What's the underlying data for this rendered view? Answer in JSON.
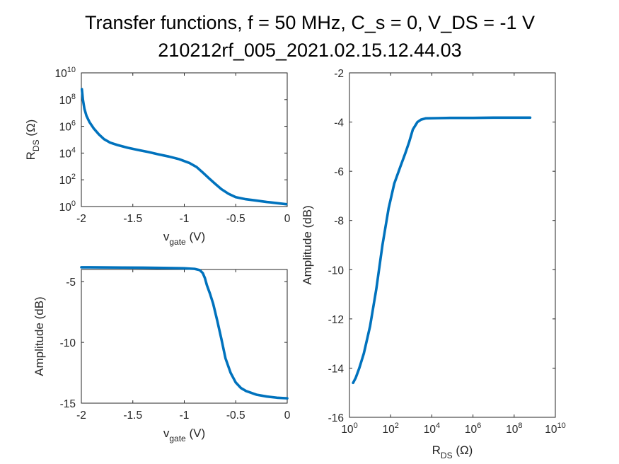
{
  "figure": {
    "title_line1": "Transfer functions, f = 50 MHz, C_s = 0, V_DS = -1 V",
    "title_line2": "210212rf_005_2021.02.15.12.44.03",
    "line_color": "#0072BD"
  },
  "chart_data": [
    {
      "type": "line",
      "name": "rds-vs-vgate",
      "xlabel": {
        "main": "v",
        "sub": "gate",
        "unit": " (V)"
      },
      "ylabel": {
        "main": "R",
        "sub": "DS",
        "unit": " (Ω)"
      },
      "xlim": [
        -2,
        0
      ],
      "ylim": [
        1,
        10000000000
      ],
      "yscale": "log",
      "xticks": [
        -2,
        -1.5,
        -1,
        -0.5,
        0
      ],
      "xticklabels": [
        "-2",
        "-1.5",
        "-1",
        "-0.5",
        "0"
      ],
      "yticks": [
        1,
        100,
        10000,
        1000000,
        100000000,
        10000000000
      ],
      "yticklabels": [
        {
          "b": "10",
          "e": "0"
        },
        {
          "b": "10",
          "e": "2"
        },
        {
          "b": "10",
          "e": "4"
        },
        {
          "b": "10",
          "e": "6"
        },
        {
          "b": "10",
          "e": "8"
        },
        {
          "b": "10",
          "e": "10"
        }
      ],
      "x": [
        -1.995,
        -1.985,
        -1.97,
        -1.95,
        -1.92,
        -1.88,
        -1.83,
        -1.78,
        -1.72,
        -1.65,
        -1.55,
        -1.45,
        -1.35,
        -1.25,
        -1.15,
        -1.05,
        -0.95,
        -0.88,
        -0.82,
        -0.76,
        -0.7,
        -0.64,
        -0.57,
        -0.5,
        -0.4,
        -0.3,
        -0.2,
        -0.1,
        -0.01
      ],
      "y": [
        600000000,
        100000000,
        20000000,
        6000000,
        2000000,
        700000,
        250000,
        110000,
        60000,
        40000,
        25000,
        17000,
        12000,
        8000,
        5500,
        3500,
        1800,
        900,
        350,
        130,
        50,
        20,
        9,
        5,
        3.5,
        2.8,
        2.2,
        1.8,
        1.5
      ]
    },
    {
      "type": "line",
      "name": "amplitude-vs-vgate",
      "xlabel": {
        "main": "v",
        "sub": "gate",
        "unit": " (V)"
      },
      "ylabel": {
        "main": "Amplitude (dB)",
        "sub": "",
        "unit": ""
      },
      "xlim": [
        -2,
        0
      ],
      "ylim": [
        -15,
        -4
      ],
      "yscale": "linear",
      "xticks": [
        -2,
        -1.5,
        -1,
        -0.5,
        0
      ],
      "xticklabels": [
        "-2",
        "-1.5",
        "-1",
        "-0.5",
        "0"
      ],
      "yticks": [
        -15,
        -10,
        -5
      ],
      "yticklabels": [
        "-15",
        "-10",
        "-5"
      ],
      "x": [
        -2.0,
        -1.8,
        -1.6,
        -1.4,
        -1.2,
        -1.0,
        -0.9,
        -0.85,
        -0.82,
        -0.8,
        -0.78,
        -0.75,
        -0.72,
        -0.68,
        -0.64,
        -0.6,
        -0.55,
        -0.5,
        -0.45,
        -0.4,
        -0.3,
        -0.2,
        -0.1,
        0.0
      ],
      "y": [
        -3.82,
        -3.83,
        -3.84,
        -3.85,
        -3.87,
        -3.9,
        -3.95,
        -4.05,
        -4.3,
        -4.7,
        -5.3,
        -6.0,
        -6.8,
        -8.2,
        -9.7,
        -11.3,
        -12.5,
        -13.3,
        -13.75,
        -14.0,
        -14.3,
        -14.45,
        -14.55,
        -14.6
      ]
    },
    {
      "type": "line",
      "name": "amplitude-vs-rds",
      "xlabel": {
        "main": "R",
        "sub": "DS",
        "unit": " (Ω)"
      },
      "ylabel": {
        "main": "Amplitude (dB)",
        "sub": "",
        "unit": ""
      },
      "xlim": [
        1,
        10000000000
      ],
      "ylim": [
        -16,
        -2
      ],
      "xscale": "log",
      "yscale": "linear",
      "xticks": [
        1,
        100,
        10000,
        1000000,
        100000000,
        10000000000
      ],
      "xticklabels": [
        {
          "b": "10",
          "e": "0"
        },
        {
          "b": "10",
          "e": "2"
        },
        {
          "b": "10",
          "e": "4"
        },
        {
          "b": "10",
          "e": "6"
        },
        {
          "b": "10",
          "e": "8"
        },
        {
          "b": "10",
          "e": "10"
        }
      ],
      "yticks": [
        -16,
        -14,
        -12,
        -10,
        -8,
        -6,
        -4,
        -2
      ],
      "yticklabels": [
        "-16",
        "-14",
        "-12",
        "-10",
        "-8",
        "-6",
        "-4",
        "-2"
      ],
      "x": [
        1.5,
        2,
        3,
        5,
        10,
        20,
        40,
        80,
        150,
        300,
        500,
        800,
        1200,
        2000,
        3000,
        5000,
        20000,
        100000,
        1000000,
        10000000,
        100000000,
        600000000
      ],
      "y": [
        -14.6,
        -14.4,
        -14.0,
        -13.4,
        -12.3,
        -10.8,
        -9.0,
        -7.5,
        -6.5,
        -5.8,
        -5.3,
        -4.8,
        -4.3,
        -4.0,
        -3.9,
        -3.85,
        -3.84,
        -3.83,
        -3.83,
        -3.82,
        -3.82,
        -3.82
      ]
    }
  ]
}
